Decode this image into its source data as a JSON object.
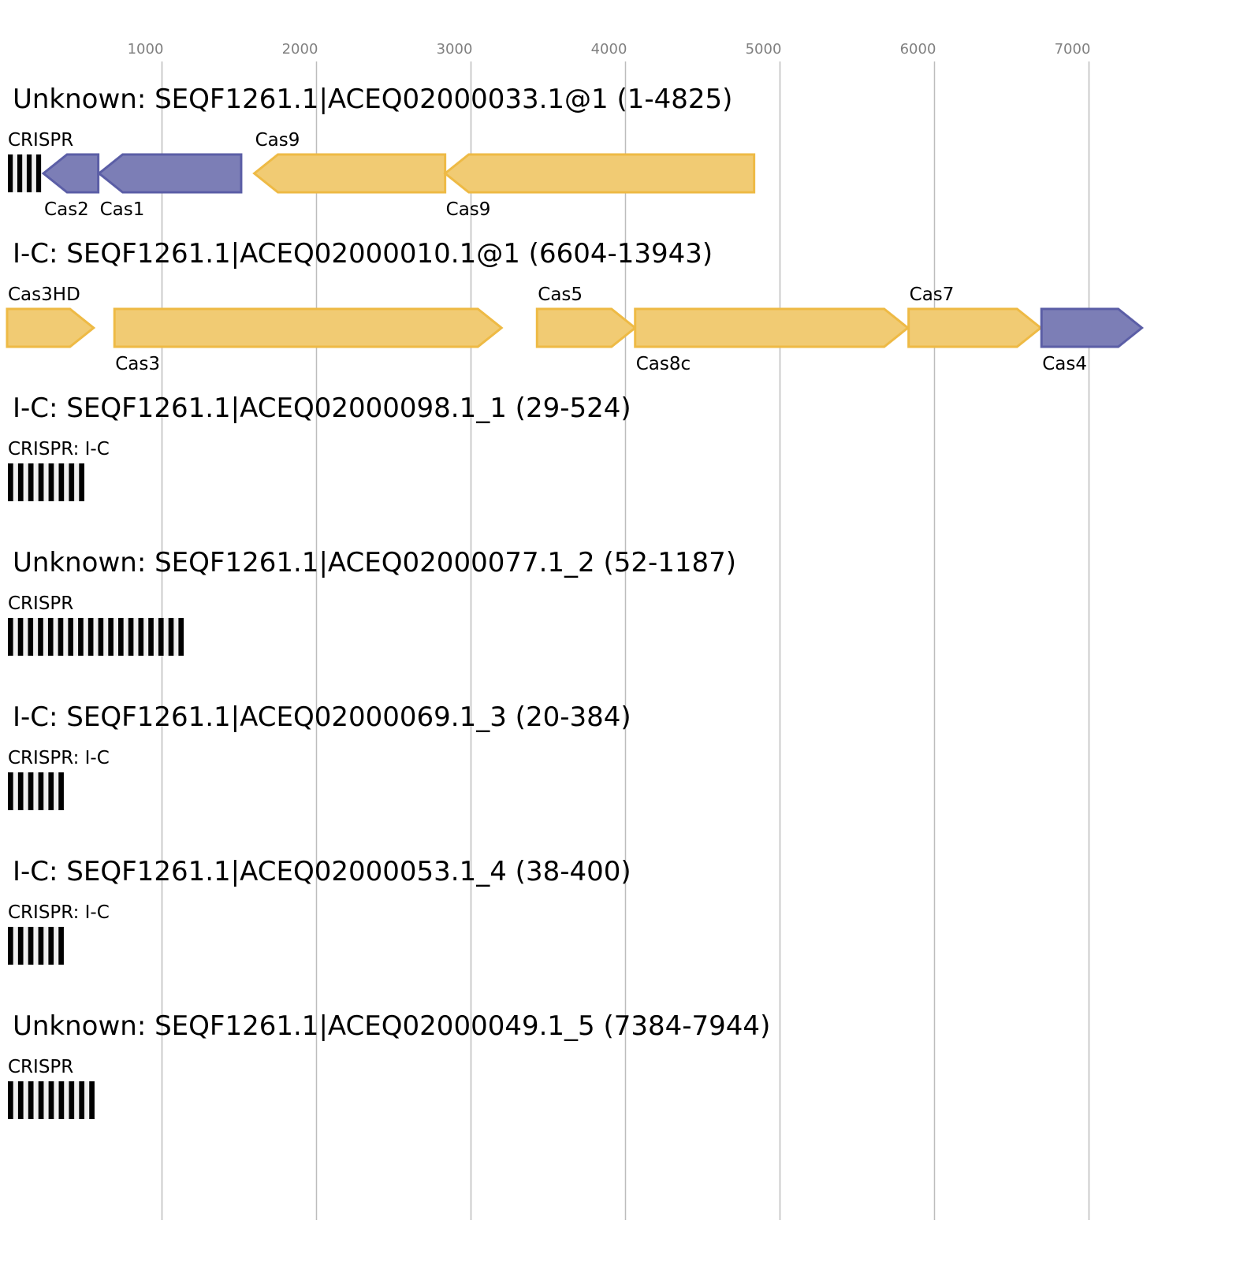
{
  "axis": {
    "ticks": [
      1000,
      2000,
      3000,
      4000,
      5000,
      6000,
      7000
    ]
  },
  "colors": {
    "yellow_fill": "#f1cb73",
    "yellow_stroke": "#eeba45",
    "blue_fill": "#7c7eb6",
    "blue_stroke": "#5b5ea6",
    "grid": "#bdbdbd"
  },
  "loci": [
    {
      "title": "Unknown: SEQF1261.1|ACEQ02000033.1@1 (1-4825)",
      "crispr": {
        "label": "CRISPR",
        "start": 0,
        "end": 220,
        "repeats": 4
      },
      "genes": [
        {
          "name": "Cas2",
          "start": 235,
          "end": 590,
          "strand": "-",
          "color": "blue",
          "label_pos": "above"
        },
        {
          "name": "Cas1",
          "start": 595,
          "end": 1515,
          "strand": "-",
          "color": "blue",
          "label_pos": "below"
        },
        {
          "name": "Cas9",
          "start": 1600,
          "end": 2835,
          "strand": "-",
          "color": "yellow",
          "label_pos": "above"
        },
        {
          "name": "Cas9",
          "start": 2835,
          "end": 4835,
          "strand": "-",
          "color": "yellow",
          "label_pos": "below"
        }
      ]
    },
    {
      "title": "I-C: SEQF1261.1|ACEQ02000010.1@1 (6604-13943)",
      "genes": [
        {
          "name": "Cas3HD",
          "start": 0,
          "end": 560,
          "strand": "+",
          "color": "yellow",
          "label_pos": "above"
        },
        {
          "name": "Cas3",
          "start": 695,
          "end": 3200,
          "strand": "+",
          "color": "yellow",
          "label_pos": "below"
        },
        {
          "name": "Cas5",
          "start": 3430,
          "end": 4065,
          "strand": "+",
          "color": "yellow",
          "label_pos": "above"
        },
        {
          "name": "Cas8c",
          "start": 4065,
          "end": 5830,
          "strand": "+",
          "color": "yellow",
          "label_pos": "below"
        },
        {
          "name": "Cas7",
          "start": 5835,
          "end": 6690,
          "strand": "+",
          "color": "yellow",
          "label_pos": "above"
        },
        {
          "name": "Cas4",
          "start": 6695,
          "end": 7345,
          "strand": "+",
          "color": "blue",
          "label_pos": "below"
        }
      ]
    },
    {
      "title": "I-C: SEQF1261.1|ACEQ02000098.1_1 (29-524)",
      "crispr": {
        "label": "CRISPR: I-C",
        "start": 0,
        "end": 500,
        "repeats": 8
      },
      "genes": []
    },
    {
      "title": "Unknown: SEQF1261.1|ACEQ02000077.1_2 (52-1187)",
      "crispr": {
        "label": "CRISPR",
        "start": 0,
        "end": 1143,
        "repeats": 18
      },
      "genes": []
    },
    {
      "title": "I-C: SEQF1261.1|ACEQ02000069.1_3 (20-384)",
      "crispr": {
        "label": "CRISPR: I-C",
        "start": 0,
        "end": 367,
        "repeats": 6
      },
      "genes": []
    },
    {
      "title": "I-C: SEQF1261.1|ACEQ02000053.1_4 (38-400)",
      "crispr": {
        "label": "CRISPR: I-C",
        "start": 0,
        "end": 367,
        "repeats": 6
      },
      "genes": []
    },
    {
      "title": "Unknown: SEQF1261.1|ACEQ02000049.1_5 (7384-7944)",
      "crispr": {
        "label": "CRISPR",
        "start": 0,
        "end": 566,
        "repeats": 9
      },
      "genes": []
    }
  ]
}
